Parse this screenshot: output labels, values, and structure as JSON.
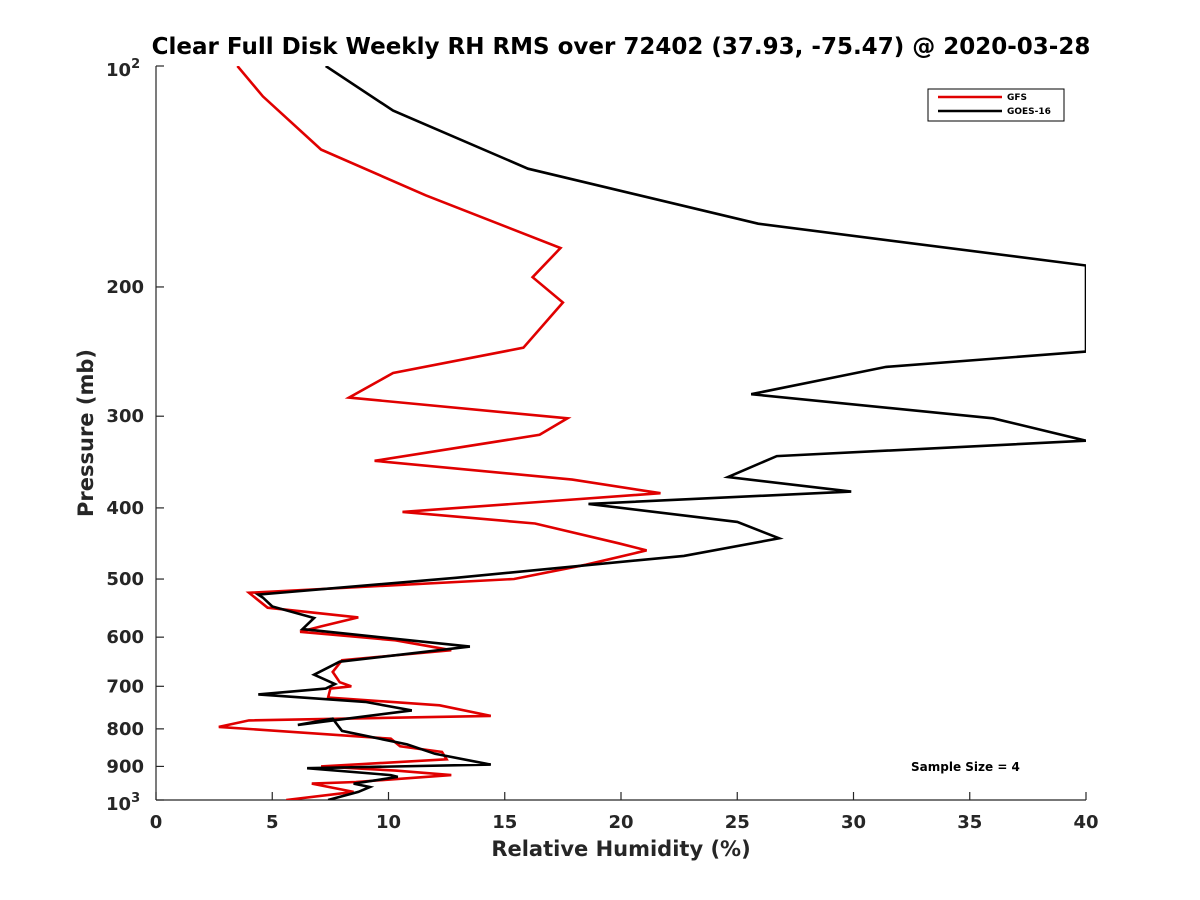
{
  "chart_data": {
    "type": "line",
    "title": "Clear Full Disk Weekly RH RMS over 72402 (37.93, -75.47) @ 2020-03-28",
    "xlabel": "Relative Humidity (%)",
    "ylabel": "Pressure (mb)",
    "xlim": [
      0,
      40
    ],
    "ylim": [
      100,
      1000
    ],
    "yscale": "log",
    "y_reversed": true,
    "x_ticks": [
      0,
      5,
      10,
      15,
      20,
      25,
      30,
      35,
      40
    ],
    "x_tick_labels": [
      "0",
      "5",
      "10",
      "15",
      "20",
      "25",
      "30",
      "35",
      "40"
    ],
    "y_ticks": [
      200,
      300,
      400,
      500,
      600,
      700,
      800,
      900
    ],
    "y_tick_labels": [
      "200",
      "300",
      "400",
      "500",
      "600",
      "700",
      "800",
      "900"
    ],
    "y_end_labels": {
      "top": {
        "base": "10",
        "exp": "2"
      },
      "bottom": {
        "base": "10",
        "exp": "3"
      }
    },
    "legend_position": "top-right",
    "annotation": "Sample Size = 4",
    "series": [
      {
        "name": "GFS",
        "color": "#e00000",
        "x": [
          3.5,
          4.6,
          7.1,
          11.6,
          17.4,
          16.2,
          17.5,
          15.8,
          10.2,
          8.3,
          17.7,
          16.5,
          9.4,
          17.9,
          21.7,
          10.6,
          16.3,
          19.9,
          21.1,
          18.5,
          15.4,
          4.0,
          4.8,
          8.7,
          7.1,
          6.2,
          10.3,
          12.7,
          8.0,
          7.6,
          7.9,
          8.4,
          7.5,
          7.4,
          12.2,
          14.4,
          4.0,
          2.7,
          10.1,
          10.5,
          12.3,
          12.5,
          7.1,
          10.3,
          12.7,
          8.6,
          6.7,
          8.5,
          5.6
        ],
        "y": [
          100,
          110,
          130,
          150,
          177,
          194,
          210,
          242,
          262,
          283,
          302,
          318,
          345,
          366,
          382,
          405,
          420,
          447,
          457,
          478,
          500,
          522,
          547,
          564,
          580,
          590,
          606,
          625,
          645,
          669,
          691,
          700,
          705,
          725,
          743,
          768,
          779,
          795,
          825,
          845,
          860,
          880,
          900,
          912,
          925,
          945,
          950,
          975,
          1000
        ],
        "values": [
          3.5,
          4.6,
          7.1,
          11.6,
          17.4,
          16.2,
          17.5,
          15.8,
          10.2,
          8.3,
          17.7,
          16.5,
          9.4,
          17.9,
          21.7,
          10.6,
          16.3,
          19.9,
          21.1,
          18.5,
          15.4,
          4.0,
          4.8,
          8.7,
          7.1,
          6.2,
          10.3,
          12.7,
          8.0,
          7.6,
          7.9,
          8.4,
          7.5,
          7.4,
          12.2,
          14.4,
          4.0,
          2.7,
          10.1,
          10.5,
          12.3,
          12.5,
          7.1,
          10.3,
          12.7,
          8.6,
          6.7,
          8.5,
          5.6
        ]
      },
      {
        "name": "GOES-16",
        "color": "#000000",
        "x": [
          7.3,
          10.2,
          16.0,
          25.9,
          40.0,
          40.0,
          31.4,
          25.6,
          36.0,
          40.0,
          26.7,
          24.6,
          29.9,
          18.6,
          25.0,
          26.8,
          22.7,
          12.9,
          4.4,
          4.6,
          5.0,
          6.8,
          6.3,
          13.5,
          7.9,
          6.8,
          7.7,
          7.3,
          4.4,
          9.0,
          11.0,
          6.1,
          7.6,
          8.0,
          10.8,
          12.0,
          14.4,
          6.5,
          10.1,
          10.4,
          8.5,
          9.2,
          8.7,
          7.4
        ],
        "y": [
          100,
          115,
          138,
          164,
          187,
          245,
          257,
          280,
          302,
          324,
          340,
          363,
          380,
          395,
          418,
          440,
          465,
          498,
          525,
          530,
          545,
          565,
          585,
          618,
          648,
          675,
          695,
          705,
          718,
          735,
          755,
          790,
          775,
          805,
          840,
          865,
          895,
          905,
          925,
          930,
          950,
          960,
          975,
          1000
        ],
        "values": [
          7.3,
          10.2,
          16.0,
          25.9,
          40.0,
          40.0,
          31.4,
          25.6,
          36.0,
          40.0,
          26.7,
          24.6,
          29.9,
          18.6,
          25.0,
          26.8,
          22.7,
          12.9,
          4.4,
          4.6,
          5.0,
          6.8,
          6.3,
          13.5,
          7.9,
          6.8,
          7.7,
          7.3,
          4.4,
          9.0,
          11.0,
          6.1,
          7.6,
          8.0,
          10.8,
          12.0,
          14.4,
          6.5,
          10.1,
          10.4,
          8.5,
          9.2,
          8.7,
          7.4
        ]
      }
    ]
  }
}
